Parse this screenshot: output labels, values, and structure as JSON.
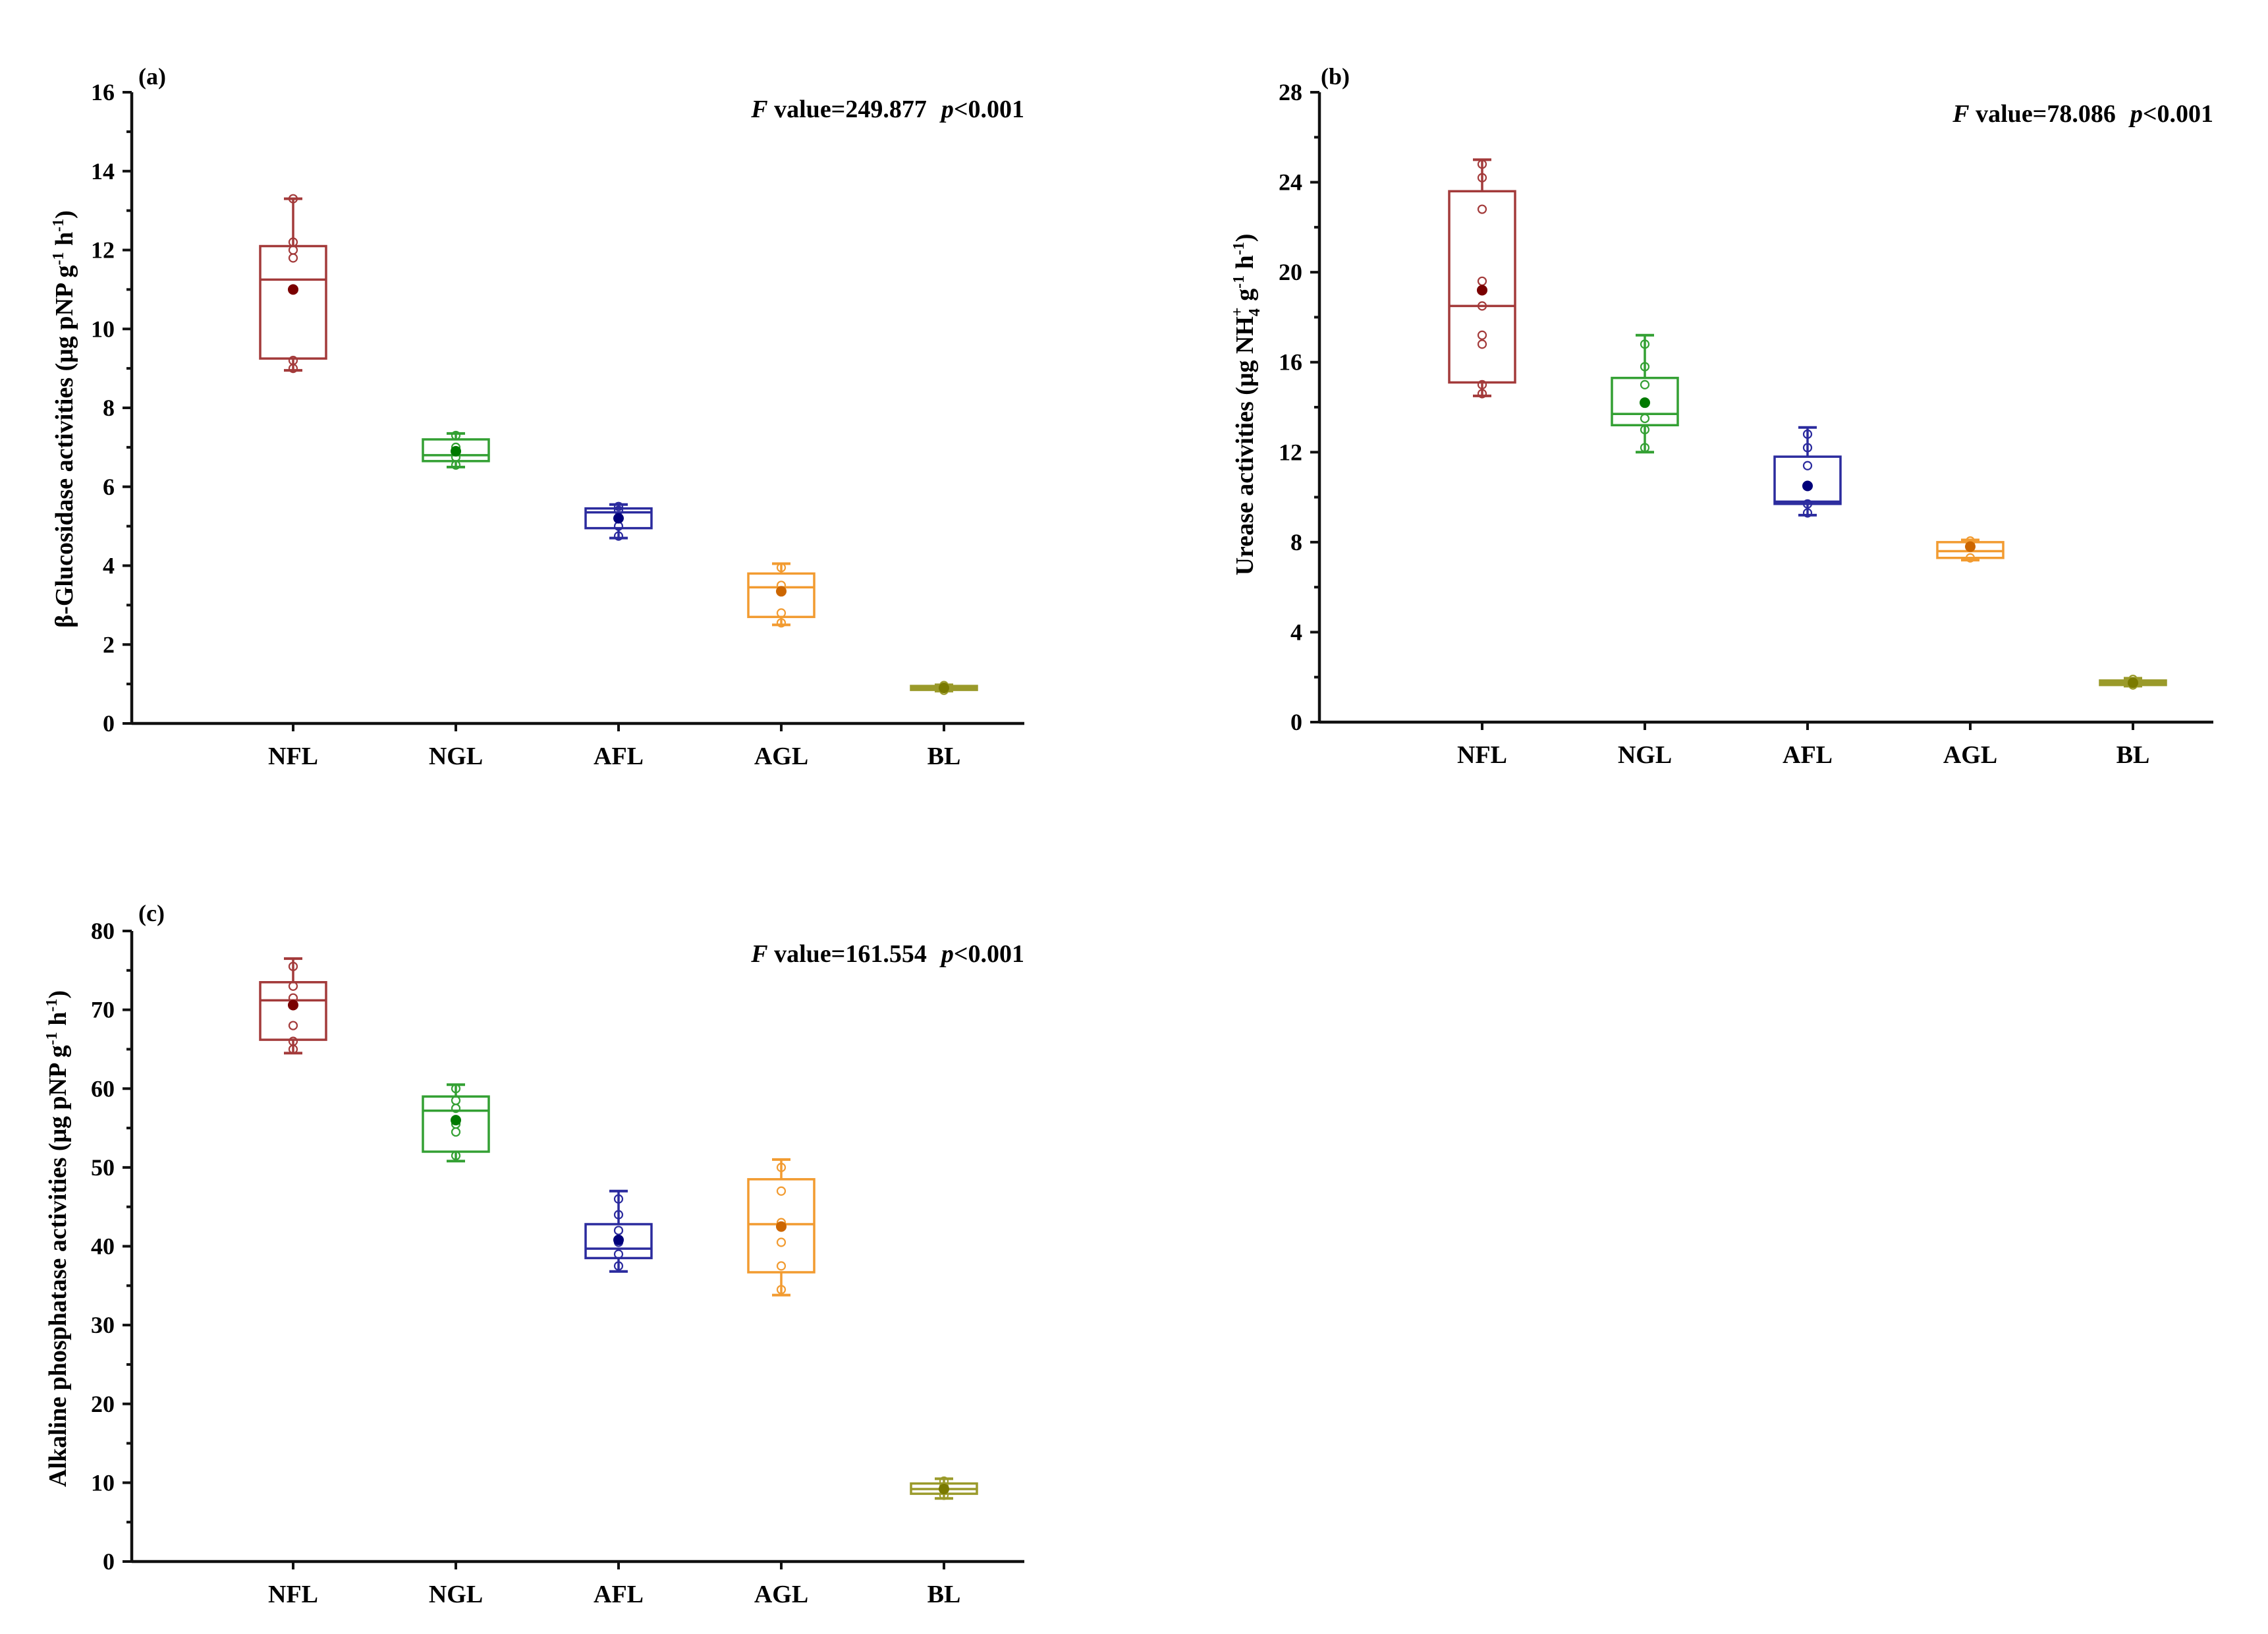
{
  "chart_data": [
    {
      "type": "box",
      "panel_label": "(a)",
      "title": "",
      "xlabel": "",
      "ylabel_parts": [
        "β-Glucosidase activities (μg pNP g",
        "-1",
        " h",
        "-1",
        ")"
      ],
      "annotation": {
        "f_label": "F",
        "f_text": " value=249.877",
        "p_label": "p",
        "p_text": "<0.001"
      },
      "ylim": [
        0,
        16
      ],
      "yticks": [
        0,
        2,
        4,
        6,
        8,
        10,
        12,
        14,
        16
      ],
      "tick_labels": [
        "0",
        "2",
        "4",
        "6",
        "8",
        "10",
        "12",
        "14",
        "16"
      ],
      "categories": [
        "NFL",
        "NGL",
        "AFL",
        "AGL",
        "BL"
      ],
      "colors": [
        "#a33a3a",
        "#33a033",
        "#2b2b9e",
        "#f29b30",
        "#9a9a2a"
      ],
      "mean_colors": [
        "#7a0000",
        "#007a00",
        "#00007a",
        "#cc6600",
        "#7a7a00"
      ],
      "boxes": [
        {
          "min": 8.95,
          "q1": 9.25,
          "median": 11.25,
          "q3": 12.1,
          "max": 13.3,
          "mean": 11.0,
          "points": [
            9.0,
            9.2,
            11.8,
            12.0,
            12.2,
            13.3
          ]
        },
        {
          "min": 6.5,
          "q1": 6.65,
          "median": 6.8,
          "q3": 7.2,
          "max": 7.35,
          "mean": 6.9,
          "points": [
            6.55,
            6.75,
            7.0,
            7.3
          ]
        },
        {
          "min": 4.7,
          "q1": 4.95,
          "median": 5.35,
          "q3": 5.45,
          "max": 5.55,
          "mean": 5.2,
          "points": [
            4.75,
            5.0,
            5.4,
            5.5
          ]
        },
        {
          "min": 2.5,
          "q1": 2.7,
          "median": 3.45,
          "q3": 3.8,
          "max": 4.05,
          "mean": 3.35,
          "points": [
            2.55,
            2.8,
            3.5,
            3.95
          ]
        },
        {
          "min": 0.82,
          "q1": 0.85,
          "median": 0.9,
          "q3": 0.95,
          "max": 0.98,
          "mean": 0.9,
          "points": [
            0.84,
            0.92,
            0.96
          ]
        }
      ]
    },
    {
      "type": "box",
      "panel_label": "(b)",
      "title": "",
      "xlabel": "",
      "ylabel_parts": [
        "Urease activities (μg NH",
        "4",
        "+",
        " g",
        "-1",
        " h",
        "-1",
        ")"
      ],
      "annotation": {
        "f_label": "F",
        "f_text": " value=78.086",
        "p_label": "p",
        "p_text": "<0.001"
      },
      "ylim": [
        0,
        28
      ],
      "yticks": [
        0,
        4,
        8,
        12,
        16,
        20,
        24,
        28
      ],
      "tick_labels": [
        "0",
        "4",
        "8",
        "12",
        "16",
        "20",
        "24",
        "28"
      ],
      "categories": [
        "NFL",
        "NGL",
        "AFL",
        "AGL",
        "BL"
      ],
      "colors": [
        "#a33a3a",
        "#33a033",
        "#2b2b9e",
        "#f29b30",
        "#9a9a2a"
      ],
      "mean_colors": [
        "#7a0000",
        "#007a00",
        "#00007a",
        "#cc6600",
        "#7a7a00"
      ],
      "boxes": [
        {
          "min": 14.5,
          "q1": 15.1,
          "median": 18.5,
          "q3": 23.6,
          "max": 25.0,
          "mean": 19.2,
          "points": [
            14.6,
            15.0,
            16.8,
            17.2,
            18.5,
            19.6,
            22.8,
            24.2,
            24.8
          ]
        },
        {
          "min": 12.0,
          "q1": 13.2,
          "median": 13.7,
          "q3": 15.3,
          "max": 17.2,
          "mean": 14.2,
          "points": [
            12.2,
            13.0,
            13.5,
            15.0,
            15.8,
            16.8
          ]
        },
        {
          "min": 9.2,
          "q1": 9.7,
          "median": 9.8,
          "q3": 11.8,
          "max": 13.1,
          "mean": 10.5,
          "points": [
            9.3,
            9.7,
            11.4,
            12.2,
            12.8
          ]
        },
        {
          "min": 7.2,
          "q1": 7.3,
          "median": 7.6,
          "q3": 8.0,
          "max": 8.1,
          "mean": 7.8,
          "points": [
            7.3,
            7.9,
            8.05
          ]
        },
        {
          "min": 1.6,
          "q1": 1.65,
          "median": 1.75,
          "q3": 1.85,
          "max": 1.95,
          "mean": 1.75,
          "points": [
            1.65,
            1.8,
            1.9
          ]
        }
      ]
    },
    {
      "type": "box",
      "panel_label": "(c)",
      "title": "",
      "xlabel": "",
      "ylabel_parts": [
        "Alkaline phosphatase activities (μg pNP g",
        "-1",
        " h",
        "-1",
        ")"
      ],
      "annotation": {
        "f_label": "F",
        "f_text": " value=161.554",
        "p_label": "p",
        "p_text": "<0.001"
      },
      "ylim": [
        0,
        80
      ],
      "yticks": [
        0,
        10,
        20,
        30,
        40,
        50,
        60,
        70,
        80
      ],
      "tick_labels": [
        "0",
        "10",
        "20",
        "30",
        "40",
        "50",
        "60",
        "70",
        "80"
      ],
      "categories": [
        "NFL",
        "NGL",
        "AFL",
        "AGL",
        "BL"
      ],
      "colors": [
        "#a33a3a",
        "#33a033",
        "#2b2b9e",
        "#f29b30",
        "#9a9a2a"
      ],
      "mean_colors": [
        "#7a0000",
        "#007a00",
        "#00007a",
        "#cc6600",
        "#7a7a00"
      ],
      "boxes": [
        {
          "min": 64.5,
          "q1": 66.2,
          "median": 71.2,
          "q3": 73.5,
          "max": 76.5,
          "mean": 70.6,
          "points": [
            65.0,
            66.0,
            68.0,
            71.5,
            73.0,
            75.5
          ]
        },
        {
          "min": 50.8,
          "q1": 52.0,
          "median": 57.2,
          "q3": 59.0,
          "max": 60.5,
          "mean": 56.0,
          "points": [
            51.5,
            54.5,
            55.5,
            57.5,
            58.5,
            60.0
          ]
        },
        {
          "min": 36.8,
          "q1": 38.5,
          "median": 39.7,
          "q3": 42.8,
          "max": 47.0,
          "mean": 40.8,
          "points": [
            37.5,
            39.0,
            40.5,
            42.0,
            44.0,
            46.0
          ]
        },
        {
          "min": 33.8,
          "q1": 36.7,
          "median": 42.8,
          "q3": 48.5,
          "max": 51.0,
          "mean": 42.5,
          "points": [
            34.5,
            37.5,
            40.5,
            43.0,
            47.0,
            50.0
          ]
        },
        {
          "min": 8.0,
          "q1": 8.6,
          "median": 9.2,
          "q3": 9.9,
          "max": 10.5,
          "mean": 9.2,
          "points": [
            8.4,
            9.5,
            10.2
          ]
        }
      ]
    }
  ]
}
